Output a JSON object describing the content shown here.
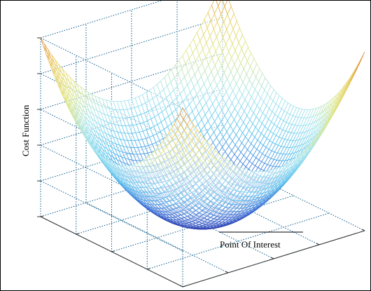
{
  "chart_data": {
    "type": "surface",
    "title": "",
    "zlabel": "Cost Function",
    "annotation": "Point Of Interest",
    "function": "z = x^2 + y^2 (convex bowl)",
    "x_range": [
      -1,
      1
    ],
    "y_range": [
      -1,
      1
    ],
    "z_range": [
      0,
      2
    ],
    "mesh_resolution": 50,
    "colormap": [
      "#2c36a8",
      "#3f72d8",
      "#5fc4ee",
      "#a9e6ee",
      "#dfe78e",
      "#e9cf63",
      "#e07b2c"
    ],
    "grid": true,
    "axis_color": "#0a5c8c"
  }
}
